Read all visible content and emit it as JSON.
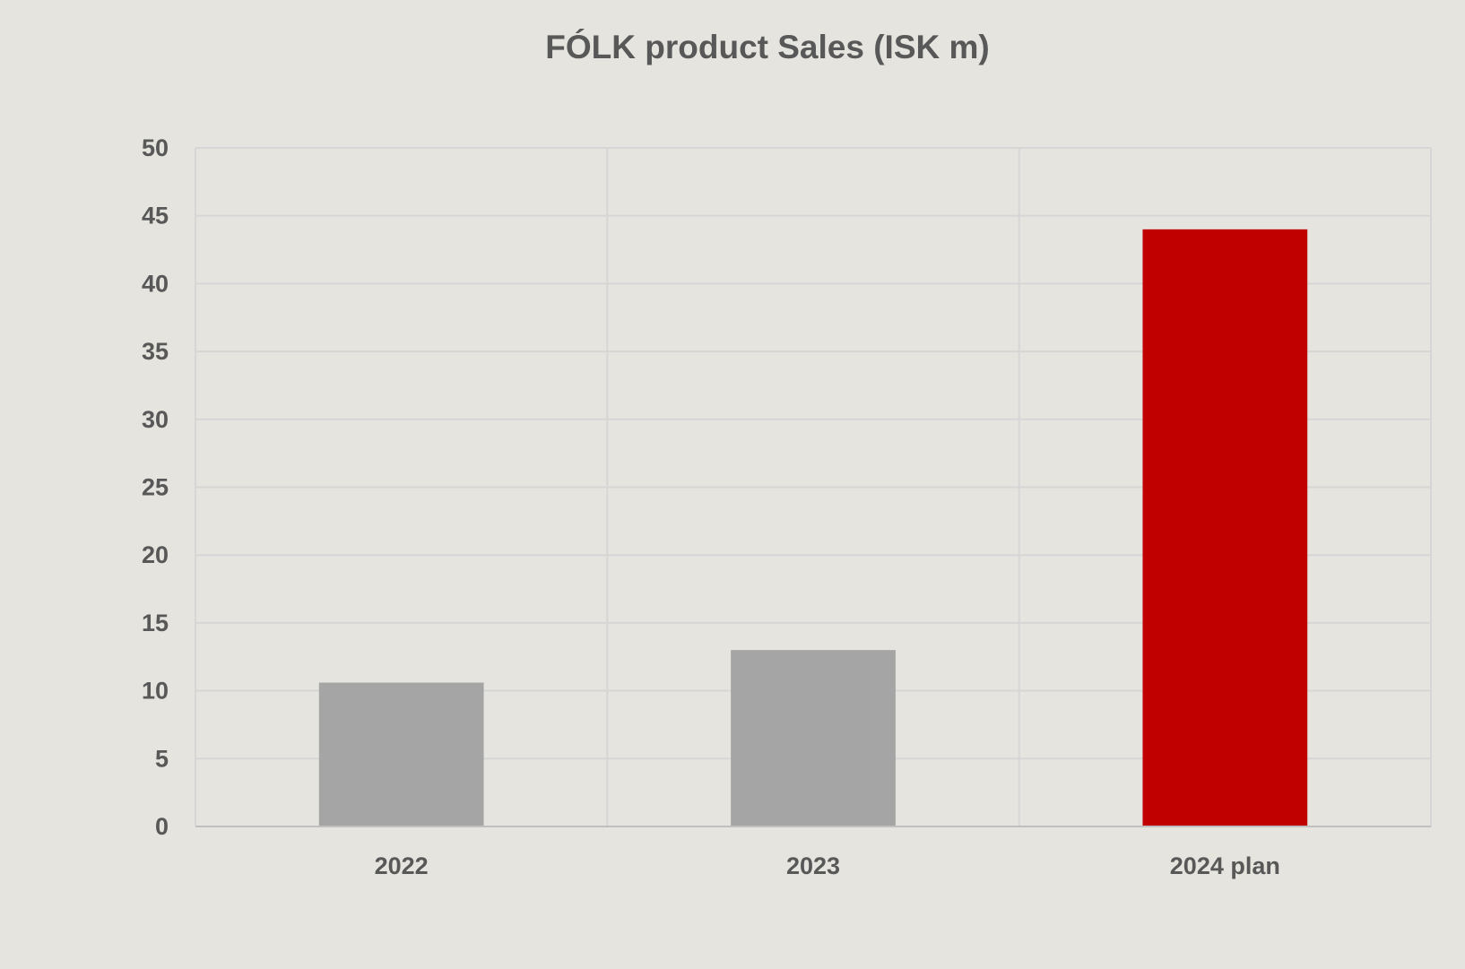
{
  "chart_data": {
    "type": "bar",
    "title": "FÓLK product Sales (ISK m)",
    "xlabel": "",
    "ylabel": "",
    "categories": [
      "2022",
      "2023",
      "2024 plan"
    ],
    "values": [
      10.6,
      13.0,
      44.0
    ],
    "ylim": [
      0,
      50
    ],
    "yticks": [
      0,
      5,
      10,
      15,
      20,
      25,
      30,
      35,
      40,
      45,
      50
    ],
    "grid": true,
    "colors": {
      "actual": "#a5a5a5",
      "plan": "#c00000",
      "grid": "#d6d6d6",
      "axis": "#bfbfbf",
      "text": "#585858",
      "background": "#e5e4de"
    },
    "bar_colors": [
      "#a5a5a5",
      "#a5a5a5",
      "#c00000"
    ]
  }
}
